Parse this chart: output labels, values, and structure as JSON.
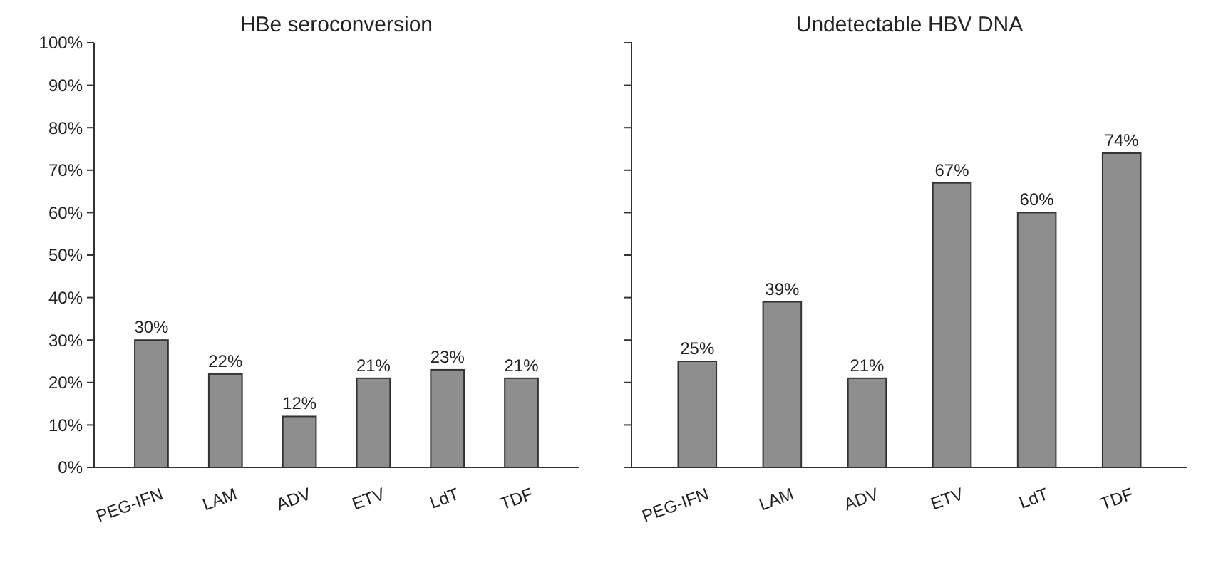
{
  "chart_data": [
    {
      "type": "bar",
      "title": "HBe seroconversion",
      "categories": [
        "PEG-IFN",
        "LAM",
        "ADV",
        "ETV",
        "LdT",
        "TDF"
      ],
      "values": [
        30,
        22,
        12,
        21,
        23,
        21
      ],
      "value_labels": [
        "30%",
        "22%",
        "12%",
        "21%",
        "23%",
        "21%"
      ],
      "color": "#8e8e8e",
      "ylim": [
        0,
        100
      ],
      "yticks": [
        {
          "value": 0,
          "label": "0%"
        },
        {
          "value": 10,
          "label": "10%"
        },
        {
          "value": 20,
          "label": "20%"
        },
        {
          "value": 30,
          "label": "30%"
        },
        {
          "value": 40,
          "label": "40%"
        },
        {
          "value": 50,
          "label": "50%"
        },
        {
          "value": 60,
          "label": "60%"
        },
        {
          "value": 70,
          "label": "70%"
        },
        {
          "value": 80,
          "label": "80%"
        },
        {
          "value": 90,
          "label": "90%"
        },
        {
          "value": 100,
          "label": "100%"
        }
      ]
    },
    {
      "type": "bar",
      "title": "Undetectable HBV DNA",
      "categories": [
        "PEG-IFN",
        "LAM",
        "ADV",
        "ETV",
        "LdT",
        "TDF"
      ],
      "values": [
        25,
        39,
        21,
        67,
        60,
        74
      ],
      "value_labels": [
        "25%",
        "39%",
        "21%",
        "67%",
        "60%",
        "74%"
      ],
      "color": "#8e8e8e",
      "ylim": [
        0,
        100
      ],
      "yticks": [
        {
          "value": 0,
          "label": null
        },
        {
          "value": 10,
          "label": null
        },
        {
          "value": 20,
          "label": null
        },
        {
          "value": 30,
          "label": null
        },
        {
          "value": 40,
          "label": null
        },
        {
          "value": 50,
          "label": null
        },
        {
          "value": 60,
          "label": null
        },
        {
          "value": 70,
          "label": null
        },
        {
          "value": 80,
          "label": null
        },
        {
          "value": 90,
          "label": null
        },
        {
          "value": 100,
          "label": null
        }
      ],
      "tick_labels": "x"
    }
  ]
}
